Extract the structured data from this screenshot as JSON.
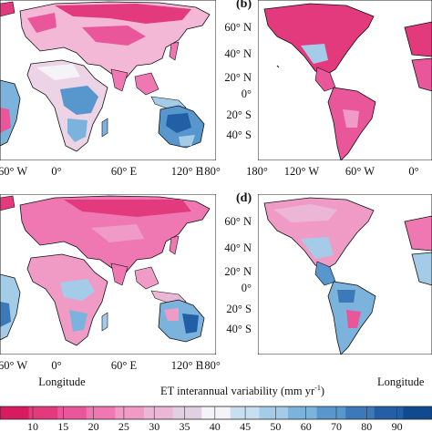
{
  "panels": [
    {
      "id": "tl",
      "label": "",
      "lat_axis": false,
      "lon_ticks": [
        "60° W",
        "0°",
        "60° E",
        "120° E",
        "180°"
      ],
      "xlabel": ""
    },
    {
      "id": "tr",
      "label": "(b)",
      "lat_axis": true,
      "lat_ticks": [
        "60° N",
        "40° N",
        "20° N",
        "0°",
        "20° S",
        "40° S"
      ],
      "lon_ticks": [
        "180°",
        "120° W",
        "60° W",
        "0°"
      ],
      "xlabel": ""
    },
    {
      "id": "bl",
      "label": "",
      "lat_axis": false,
      "lon_ticks": [
        "60° W",
        "0°",
        "60° E",
        "120° E",
        "180°"
      ],
      "xlabel": "Longitude"
    },
    {
      "id": "br",
      "label": "(d)",
      "lat_axis": true,
      "lat_ticks": [
        "60° N",
        "40° N",
        "20° N",
        "0°",
        "20° S",
        "40° S"
      ],
      "lon_ticks": [],
      "xlabel": "Longitude"
    }
  ],
  "colorbar": {
    "title": "ET interannual variability (mm yr",
    "title_sup": "-1",
    "title_close": ")",
    "ticks": [
      "10",
      "15",
      "20",
      "25",
      "30",
      "35",
      "40",
      "45",
      "50",
      "60",
      "70",
      "80",
      "90"
    ],
    "colors": [
      "#d81b60",
      "#e23a7c",
      "#e9579a",
      "#ef78b2",
      "#f09bc6",
      "#ecb7d6",
      "#e3cfe4",
      "#f4f4f8",
      "#c7dff0",
      "#a4cce8",
      "#7cb3dc",
      "#5797cd",
      "#3b79b9",
      "#225fa4",
      "#0f4a8e"
    ]
  }
}
